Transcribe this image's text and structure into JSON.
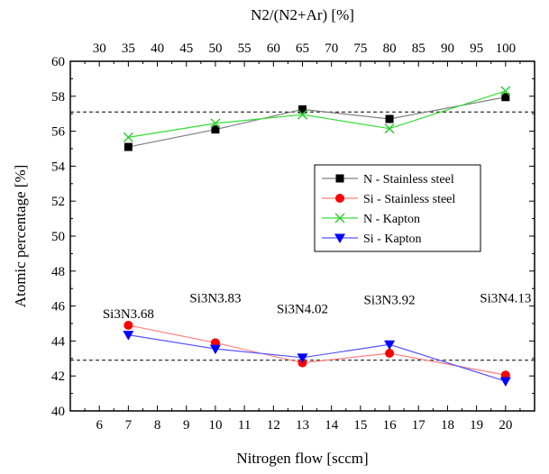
{
  "chart_data": {
    "type": "line",
    "xlabel": "Nitrogen flow [sccm]",
    "ylabel": "Atomic percentage [%]",
    "top_xlabel": "N2/(N2+Ar) [%]",
    "xlim": [
      5,
      21
    ],
    "ylim": [
      40,
      60
    ],
    "x_ticks": [
      6,
      7,
      8,
      9,
      10,
      11,
      12,
      13,
      14,
      15,
      16,
      17,
      18,
      19,
      20
    ],
    "y_ticks": [
      40,
      42,
      44,
      46,
      48,
      50,
      52,
      54,
      56,
      58,
      60
    ],
    "top_ticks": [
      {
        "x": 6,
        "label": "30"
      },
      {
        "x": 7,
        "label": "35"
      },
      {
        "x": 8,
        "label": "40"
      },
      {
        "x": 9,
        "label": "45"
      },
      {
        "x": 10,
        "label": "50"
      },
      {
        "x": 11,
        "label": "55"
      },
      {
        "x": 12,
        "label": "60"
      },
      {
        "x": 13,
        "label": "65"
      },
      {
        "x": 14,
        "label": "70"
      },
      {
        "x": 15,
        "label": "75"
      },
      {
        "x": 16,
        "label": "80"
      },
      {
        "x": 17,
        "label": "85"
      },
      {
        "x": 18,
        "label": "90"
      },
      {
        "x": 19,
        "label": "95"
      },
      {
        "x": 20,
        "label": "100"
      }
    ],
    "x": [
      7,
      10,
      13,
      16,
      20
    ],
    "series": [
      {
        "name": "N - Stainless steel",
        "values": [
          55.1,
          56.1,
          57.25,
          56.7,
          57.95
        ],
        "color": "#7f7f7f",
        "marker": "square",
        "marker_color": "#000000"
      },
      {
        "name": "Si - Stainless steel",
        "values": [
          44.9,
          43.9,
          42.75,
          43.3,
          42.05
        ],
        "color": "#ff7f7f",
        "marker": "circle",
        "marker_color": "#ff0000"
      },
      {
        "name": "N - Kapton",
        "values": [
          55.65,
          56.45,
          56.95,
          56.15,
          58.3
        ],
        "color": "#33dd33",
        "marker": "x",
        "marker_color": "#33cc33"
      },
      {
        "name": "Si - Kapton",
        "values": [
          44.35,
          43.55,
          43.05,
          43.8,
          41.7
        ],
        "color": "#5555ff",
        "marker": "triangle-down",
        "marker_color": "#0000ff"
      }
    ],
    "reference_lines": [
      57.1,
      42.9
    ],
    "annotations": [
      {
        "text": "Si3N3.68",
        "x": 7,
        "y": 45.3
      },
      {
        "text": "Si3N3.83",
        "x": 10,
        "y": 46.2
      },
      {
        "text": "Si3N4.02",
        "x": 13,
        "y": 45.6
      },
      {
        "text": "Si3N3.92",
        "x": 16,
        "y": 46.1
      },
      {
        "text": "Si3N4.13",
        "x": 20,
        "y": 46.2
      }
    ],
    "legend_position": "middle-right",
    "grid": false
  }
}
